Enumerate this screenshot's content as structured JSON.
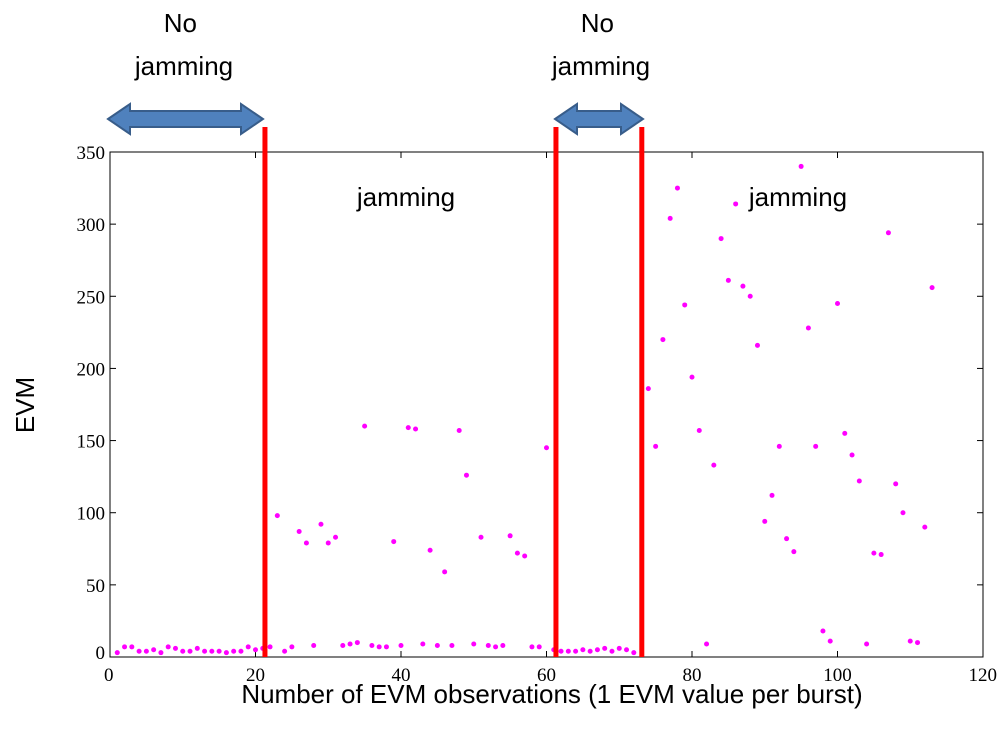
{
  "chart_data": {
    "type": "scatter",
    "title": "",
    "xlabel": "Number of EVM observations (1 EVM value per burst)",
    "ylabel": "EVM",
    "xlim": [
      0,
      120
    ],
    "ylim": [
      0,
      350
    ],
    "xticks": [
      0,
      20,
      40,
      60,
      80,
      100,
      120
    ],
    "yticks": [
      0,
      50,
      100,
      150,
      200,
      250,
      300,
      350
    ],
    "grid": false,
    "legend": "none",
    "marker_color": "#ff00ff",
    "boundary_color": "#ff0000",
    "arrow_color": "#4f81bd",
    "boundaries_x": [
      21.3,
      61.3,
      73.1
    ],
    "annotations": [
      {
        "id": "nojam1",
        "lines": [
          "No",
          "jamming"
        ]
      },
      {
        "id": "jam1",
        "lines": [
          "jamming"
        ]
      },
      {
        "id": "nojam2",
        "lines": [
          "No",
          "jamming"
        ]
      },
      {
        "id": "jam2",
        "lines": [
          "jamming"
        ]
      }
    ],
    "series": [
      {
        "points": [
          [
            1,
            3
          ],
          [
            2,
            7
          ],
          [
            3,
            7
          ],
          [
            4,
            4
          ],
          [
            5,
            4
          ],
          [
            6,
            5
          ],
          [
            7,
            3
          ],
          [
            8,
            7
          ],
          [
            9,
            6
          ],
          [
            10,
            4
          ],
          [
            11,
            4
          ],
          [
            12,
            6
          ],
          [
            13,
            4
          ],
          [
            14,
            4
          ],
          [
            15,
            4
          ],
          [
            16,
            3
          ],
          [
            17,
            4
          ],
          [
            18,
            4
          ],
          [
            19,
            7
          ],
          [
            20,
            5
          ],
          [
            21,
            6
          ],
          [
            22,
            7
          ],
          [
            23,
            98
          ],
          [
            24,
            4
          ],
          [
            25,
            7
          ],
          [
            26,
            87
          ],
          [
            27,
            79
          ],
          [
            28,
            8
          ],
          [
            29,
            92
          ],
          [
            30,
            79
          ],
          [
            31,
            83
          ],
          [
            32,
            8
          ],
          [
            33,
            9
          ],
          [
            34,
            10
          ],
          [
            35,
            160
          ],
          [
            36,
            8
          ],
          [
            37,
            7
          ],
          [
            38,
            7
          ],
          [
            39,
            80
          ],
          [
            40,
            8
          ],
          [
            41,
            159
          ],
          [
            42,
            158
          ],
          [
            43,
            9
          ],
          [
            44,
            74
          ],
          [
            45,
            8
          ],
          [
            46,
            59
          ],
          [
            47,
            8
          ],
          [
            48,
            157
          ],
          [
            49,
            126
          ],
          [
            50,
            9
          ],
          [
            51,
            83
          ],
          [
            52,
            8
          ],
          [
            53,
            7
          ],
          [
            54,
            8
          ],
          [
            55,
            84
          ],
          [
            56,
            72
          ],
          [
            57,
            70
          ],
          [
            58,
            7
          ],
          [
            59,
            7
          ],
          [
            60,
            145
          ],
          [
            61,
            5
          ],
          [
            62,
            4
          ],
          [
            63,
            4
          ],
          [
            64,
            4
          ],
          [
            65,
            5
          ],
          [
            66,
            4
          ],
          [
            67,
            5
          ],
          [
            68,
            6
          ],
          [
            69,
            4
          ],
          [
            70,
            6
          ],
          [
            71,
            5
          ],
          [
            72,
            3
          ],
          [
            74,
            186
          ],
          [
            75,
            146
          ],
          [
            76,
            220
          ],
          [
            77,
            304
          ],
          [
            78,
            325
          ],
          [
            79,
            244
          ],
          [
            80,
            194
          ],
          [
            81,
            157
          ],
          [
            82,
            9
          ],
          [
            83,
            133
          ],
          [
            84,
            290
          ],
          [
            85,
            261
          ],
          [
            86,
            314
          ],
          [
            87,
            257
          ],
          [
            88,
            250
          ],
          [
            89,
            216
          ],
          [
            90,
            94
          ],
          [
            91,
            112
          ],
          [
            92,
            146
          ],
          [
            93,
            82
          ],
          [
            94,
            73
          ],
          [
            95,
            340
          ],
          [
            96,
            228
          ],
          [
            97,
            146
          ],
          [
            98,
            18
          ],
          [
            99,
            11
          ],
          [
            100,
            245
          ],
          [
            101,
            155
          ],
          [
            102,
            140
          ],
          [
            103,
            122
          ],
          [
            104,
            9
          ],
          [
            105,
            72
          ],
          [
            106,
            71
          ],
          [
            107,
            294
          ],
          [
            108,
            120
          ],
          [
            109,
            100
          ],
          [
            110,
            11
          ],
          [
            111,
            10
          ],
          [
            112,
            90
          ],
          [
            113,
            256
          ]
        ]
      }
    ]
  }
}
